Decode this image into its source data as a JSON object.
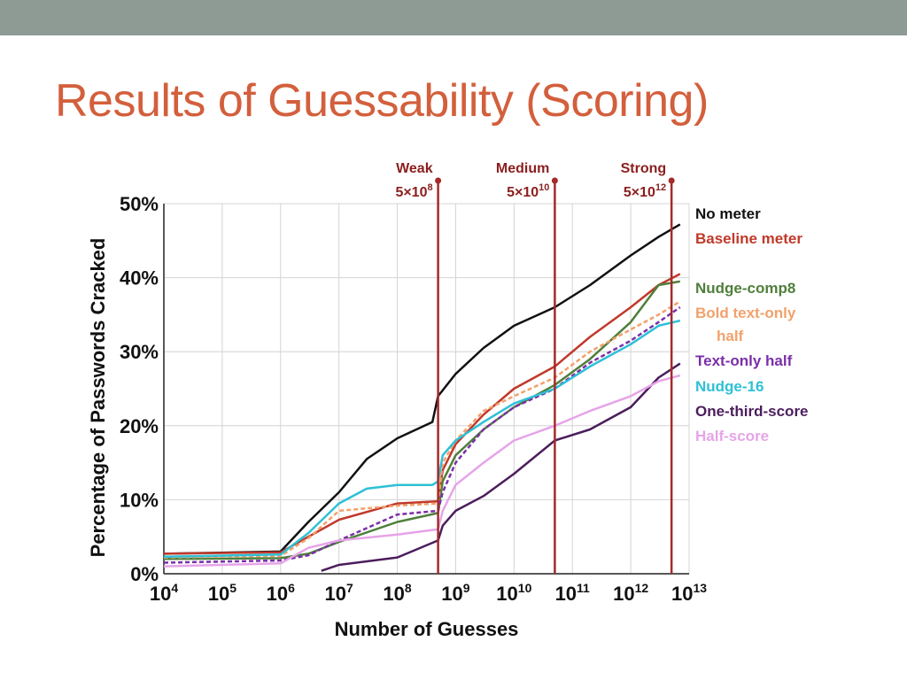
{
  "slide": {
    "title": "Results of Guessability (Scoring)",
    "band_color": "#8e9a94",
    "title_color": "#d35f3c"
  },
  "chart_data": {
    "type": "line",
    "title": "",
    "xlabel": "Number of Guesses",
    "ylabel": "Percentage of Passwords Cracked",
    "x_scale": "log",
    "xlim": [
      10000,
      10000000000000
    ],
    "ylim": [
      0,
      50
    ],
    "x_ticks": [
      {
        "value": 10000,
        "base": "10",
        "exp": "4"
      },
      {
        "value": 100000,
        "base": "10",
        "exp": "5"
      },
      {
        "value": 1000000,
        "base": "10",
        "exp": "6"
      },
      {
        "value": 10000000,
        "base": "10",
        "exp": "7"
      },
      {
        "value": 100000000,
        "base": "10",
        "exp": "8"
      },
      {
        "value": 1000000000,
        "base": "10",
        "exp": "9"
      },
      {
        "value": 10000000000,
        "base": "10",
        "exp": "10"
      },
      {
        "value": 100000000000,
        "base": "10",
        "exp": "11"
      },
      {
        "value": 1000000000000,
        "base": "10",
        "exp": "12"
      },
      {
        "value": 10000000000000,
        "base": "10",
        "exp": "13"
      }
    ],
    "y_ticks": [
      {
        "value": 0,
        "label": "0%"
      },
      {
        "value": 10,
        "label": "10%"
      },
      {
        "value": 20,
        "label": "20%"
      },
      {
        "value": 30,
        "label": "30%"
      },
      {
        "value": 40,
        "label": "40%"
      },
      {
        "value": 50,
        "label": "50%"
      }
    ],
    "grid": true,
    "legend_position": "right",
    "thresholds": [
      {
        "name": "Weak",
        "value": 500000000,
        "mant": "5×10",
        "exp": "8"
      },
      {
        "name": "Medium",
        "value": 50000000000,
        "mant": "5×10",
        "exp": "10"
      },
      {
        "name": "Strong",
        "value": 5000000000000,
        "mant": "5×10",
        "exp": "12"
      }
    ],
    "threshold_color": "#a52a2a",
    "series": [
      {
        "name": "No meter",
        "color": "#111111",
        "dashed": false,
        "points": [
          [
            10000,
            2.7
          ],
          [
            1000000,
            3.0
          ],
          [
            3000000,
            7.0
          ],
          [
            10000000,
            11.0
          ],
          [
            30000000,
            15.5
          ],
          [
            100000000,
            18.3
          ],
          [
            400000000,
            20.5
          ],
          [
            500000000,
            24.0
          ],
          [
            1000000000,
            27.0
          ],
          [
            3000000000,
            30.5
          ],
          [
            10000000000,
            33.5
          ],
          [
            50000000000,
            36.0
          ],
          [
            200000000000,
            39.0
          ],
          [
            1000000000000,
            43.0
          ],
          [
            3000000000000,
            45.5
          ],
          [
            7000000000000,
            47.2
          ]
        ]
      },
      {
        "name": "Baseline meter",
        "color": "#c0392b",
        "dashed": false,
        "points": [
          [
            10000,
            2.7
          ],
          [
            1000000,
            2.9
          ],
          [
            3000000,
            5.0
          ],
          [
            10000000,
            7.3
          ],
          [
            100000000,
            9.5
          ],
          [
            500000000,
            9.8
          ],
          [
            600000000,
            14.0
          ],
          [
            1000000000,
            17.5
          ],
          [
            3000000000,
            21.5
          ],
          [
            10000000000,
            25.0
          ],
          [
            50000000000,
            28.0
          ],
          [
            200000000000,
            32.0
          ],
          [
            1000000000000,
            36.0
          ],
          [
            3000000000000,
            39.0
          ],
          [
            7000000000000,
            40.5
          ]
        ]
      },
      {
        "name": "Nudge-comp8",
        "color": "#4f7f3b",
        "dashed": false,
        "points": [
          [
            10000,
            2.0
          ],
          [
            1000000,
            2.1
          ],
          [
            3000000,
            2.7
          ],
          [
            10000000,
            4.3
          ],
          [
            100000000,
            7.0
          ],
          [
            500000000,
            8.2
          ],
          [
            600000000,
            12.5
          ],
          [
            1000000000,
            16.0
          ],
          [
            3000000000,
            19.5
          ],
          [
            10000000000,
            22.5
          ],
          [
            50000000000,
            25.5
          ],
          [
            200000000000,
            29.0
          ],
          [
            1000000000000,
            34.0
          ],
          [
            3000000000000,
            39.0
          ],
          [
            7000000000000,
            39.5
          ]
        ]
      },
      {
        "name": "Bold text-only half",
        "color": "#f2a16b",
        "dashed": true,
        "points": [
          [
            10000,
            2.2
          ],
          [
            1000000,
            2.4
          ],
          [
            3000000,
            4.8
          ],
          [
            10000000,
            8.5
          ],
          [
            100000000,
            9.2
          ],
          [
            500000000,
            9.5
          ],
          [
            600000000,
            15.0
          ],
          [
            1000000000,
            18.0
          ],
          [
            3000000000,
            22.0
          ],
          [
            10000000000,
            24.0
          ],
          [
            50000000000,
            26.5
          ],
          [
            200000000000,
            30.0
          ],
          [
            1000000000000,
            33.0
          ],
          [
            3000000000000,
            35.0
          ],
          [
            7000000000000,
            36.8
          ]
        ]
      },
      {
        "name": "Text-only half",
        "color": "#7b2fa8",
        "dashed": true,
        "points": [
          [
            10000,
            1.5
          ],
          [
            1000000,
            1.8
          ],
          [
            3000000,
            2.5
          ],
          [
            10000000,
            4.5
          ],
          [
            100000000,
            8.0
          ],
          [
            500000000,
            8.5
          ],
          [
            600000000,
            11.0
          ],
          [
            1000000000,
            15.0
          ],
          [
            3000000000,
            19.5
          ],
          [
            10000000000,
            22.5
          ],
          [
            50000000000,
            25.0
          ],
          [
            200000000000,
            28.5
          ],
          [
            1000000000000,
            31.5
          ],
          [
            3000000000000,
            34.0
          ],
          [
            7000000000000,
            36.0
          ]
        ]
      },
      {
        "name": "Nudge-16",
        "color": "#2ec0d6",
        "dashed": false,
        "points": [
          [
            10000,
            2.3
          ],
          [
            1000000,
            2.6
          ],
          [
            3000000,
            5.5
          ],
          [
            10000000,
            9.5
          ],
          [
            30000000,
            11.5
          ],
          [
            100000000,
            12.0
          ],
          [
            400000000,
            12.0
          ],
          [
            500000000,
            12.5
          ],
          [
            600000000,
            16.0
          ],
          [
            1000000000,
            18.0
          ],
          [
            3000000000,
            20.5
          ],
          [
            10000000000,
            23.0
          ],
          [
            50000000000,
            25.0
          ],
          [
            200000000000,
            28.0
          ],
          [
            1000000000000,
            31.0
          ],
          [
            3000000000000,
            33.5
          ],
          [
            7000000000000,
            34.2
          ]
        ]
      },
      {
        "name": "One-third-score",
        "color": "#4b1d5c",
        "dashed": false,
        "points": [
          [
            5000000,
            0.4
          ],
          [
            10000000,
            1.2
          ],
          [
            100000000,
            2.2
          ],
          [
            500000000,
            4.5
          ],
          [
            600000000,
            6.5
          ],
          [
            1000000000,
            8.5
          ],
          [
            3000000000,
            10.5
          ],
          [
            10000000000,
            13.5
          ],
          [
            50000000000,
            18.0
          ],
          [
            200000000000,
            19.5
          ],
          [
            1000000000000,
            22.5
          ],
          [
            3000000000000,
            26.5
          ],
          [
            7000000000000,
            28.4
          ]
        ]
      },
      {
        "name": "Half-score",
        "color": "#e6a4e8",
        "dashed": false,
        "points": [
          [
            10000,
            1.0
          ],
          [
            1000000,
            1.4
          ],
          [
            3000000,
            3.5
          ],
          [
            10000000,
            4.5
          ],
          [
            100000000,
            5.3
          ],
          [
            500000000,
            6.0
          ],
          [
            600000000,
            8.5
          ],
          [
            1000000000,
            12.0
          ],
          [
            3000000000,
            15.0
          ],
          [
            10000000000,
            18.0
          ],
          [
            50000000000,
            20.0
          ],
          [
            200000000000,
            22.0
          ],
          [
            1000000000000,
            24.0
          ],
          [
            3000000000000,
            26.0
          ],
          [
            7000000000000,
            26.8
          ]
        ]
      }
    ],
    "legend": [
      {
        "label": "No meter",
        "color": "#111111"
      },
      {
        "label": "Baseline meter",
        "color": "#c0392b"
      },
      {
        "label": "Nudge-comp8",
        "color": "#4f7f3b"
      },
      {
        "label": "Bold text-only",
        "color": "#f2a16b"
      },
      {
        "label": "half",
        "color": "#f2a16b"
      },
      {
        "label": "Text-only half",
        "color": "#7b2fa8"
      },
      {
        "label": "Nudge-16",
        "color": "#2ec0d6"
      },
      {
        "label": "One-third-score",
        "color": "#4b1d5c"
      },
      {
        "label": "Half-score",
        "color": "#e6a4e8"
      }
    ]
  }
}
